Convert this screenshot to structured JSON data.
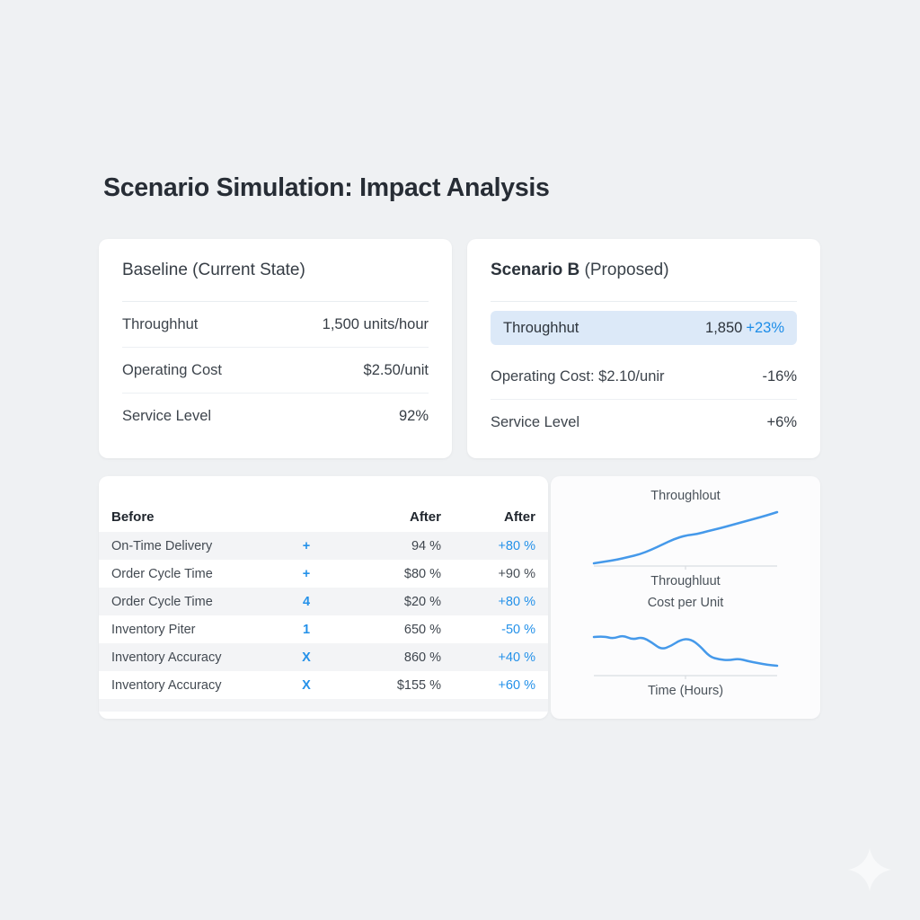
{
  "page": {
    "title": "Scenario Simulation: Impact Analysis"
  },
  "baseline_card": {
    "title": "Baseline (Current State)",
    "rows": [
      {
        "label": "Throughhut",
        "value": "1,500 units/hour"
      },
      {
        "label": "Operating Cost",
        "value": "$2.50/unit"
      },
      {
        "label": "Service Level",
        "value": "92%"
      }
    ]
  },
  "scenario_card": {
    "title_bold": "Scenario B",
    "title_rest": " (Proposed)",
    "highlight_row": {
      "label": "Throughhut",
      "value": "1,850",
      "change": "+23%"
    },
    "rows": [
      {
        "label": "Operating Cost: $2.10/unir",
        "change": "-16%"
      },
      {
        "label": "Service Level",
        "change": "+6%"
      }
    ]
  },
  "metrics_table": {
    "headers": {
      "before": "Before",
      "after_value": "After",
      "after_change": "After"
    },
    "rows": [
      {
        "name": "On-Time Delivery",
        "symbol": "+",
        "value": "94 %",
        "change": "+80 %",
        "variant": "blue"
      },
      {
        "name": "Order Cycle Time",
        "symbol": "+",
        "value": "$80 %",
        "change": "+90 %",
        "variant": "dark"
      },
      {
        "name": "Order Cycle Time",
        "symbol": "4",
        "value": "$20 %",
        "change": "+80 %",
        "variant": "blue"
      },
      {
        "name": "Inventory Piter",
        "symbol": "1",
        "value": "650 %",
        "change": "-50 %",
        "variant": "blue"
      },
      {
        "name": "Inventory Accuracy",
        "symbol": "X",
        "value": "860 %",
        "change": "+40 %",
        "variant": "blue"
      },
      {
        "name": "Inventory Accuracy",
        "symbol": "X",
        "value": "$155 %",
        "change": "+60 %",
        "variant": "blue"
      }
    ]
  },
  "chart_panel": {
    "top_title": "Throughlout",
    "top_axis_label": "Throughluut",
    "bottom_title": "Cost per Unit",
    "bottom_axis_label": "Time (Hours)"
  },
  "chart_data": [
    {
      "type": "line",
      "title": "Throughlout",
      "xlabel": "Throughluut",
      "trend": "increasing",
      "line_color": "#4599ea",
      "points_y": [
        65,
        63,
        61,
        58,
        55,
        50,
        44,
        38,
        34,
        32.5,
        29,
        26,
        22.5,
        19,
        15.5,
        12,
        8
      ]
    },
    {
      "type": "line",
      "title": "Cost per Unit",
      "xlabel": "Time (Hours)",
      "trend": "decreasing",
      "line_color": "#4599ea",
      "points_y": [
        20,
        19,
        22,
        18,
        23,
        20,
        26,
        34,
        30,
        23,
        22,
        30,
        42,
        45,
        46,
        44,
        47,
        49,
        51,
        52
      ]
    }
  ],
  "colors": {
    "background": "#eff1f3",
    "card": "#ffffff",
    "accent_blue": "#2491e9",
    "highlight_row_bg": "#dce9f8",
    "row_stripe": "#f3f4f6",
    "axis": "#d9dde2",
    "text_dark": "#272d35"
  },
  "watermark": {
    "icon": "sparkle"
  }
}
